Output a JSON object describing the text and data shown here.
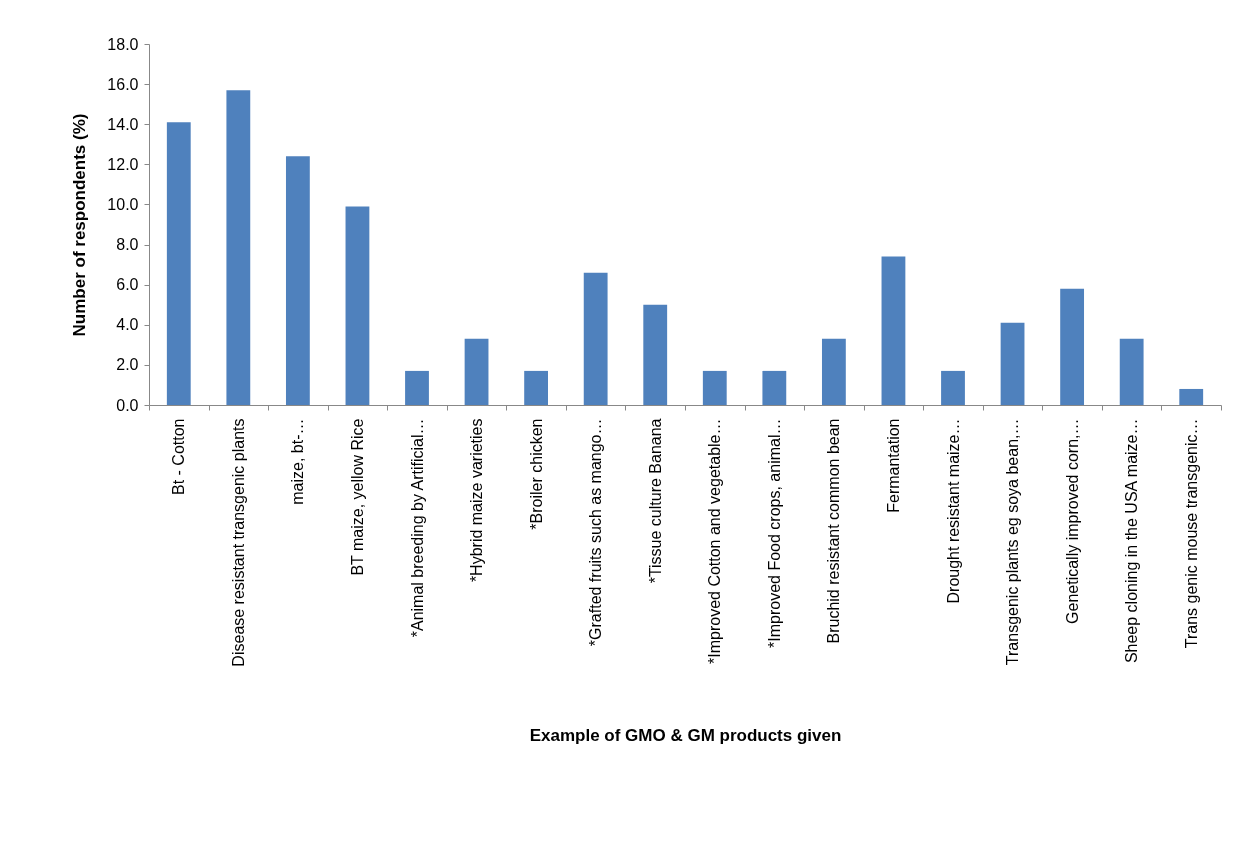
{
  "chart_data": {
    "type": "bar",
    "xlabel": "Example of GMO & GM products given",
    "ylabel": "Number of respondents (%)",
    "categories": [
      "Bt - Cotton",
      "Disease resistant transgenic plants",
      "maize,  bt-…",
      "BT maize, yellow Rice",
      "*Animal breeding by Artificial…",
      "*Hybrid maize varieties",
      "*Broiler chicken",
      "*Grafted fruits such as mango…",
      "*Tissue culture Banana",
      "*Improved Cotton and vegetable…",
      "*Improved Food crops, animal…",
      "Bruchid resistant common bean",
      "Fermantation",
      "Drought resistant  maize…",
      "Transgenic plants eg soya bean,…",
      "Genetically improved corn,…",
      "Sheep cloning in the USA maize…",
      "Trans genic mouse transgenic…"
    ],
    "values": [
      14.1,
      15.7,
      12.4,
      9.9,
      1.7,
      3.3,
      1.7,
      6.6,
      5.0,
      1.7,
      1.7,
      3.3,
      7.4,
      1.7,
      4.1,
      5.8,
      3.3,
      0.8
    ],
    "color": "#4f81bd",
    "ylim": [
      0,
      18
    ],
    "yticks": [
      {
        "value": 0,
        "label": "0.0"
      },
      {
        "value": 2,
        "label": "2.0"
      },
      {
        "value": 4,
        "label": "4.0"
      },
      {
        "value": 6,
        "label": "6.0"
      },
      {
        "value": 8,
        "label": "8.0"
      },
      {
        "value": 10,
        "label": "10.0"
      },
      {
        "value": 12,
        "label": "12.0"
      },
      {
        "value": 14,
        "label": "14.0"
      },
      {
        "value": 16,
        "label": "16.0"
      },
      {
        "value": 18,
        "label": "18.0"
      }
    ],
    "grid": false
  }
}
